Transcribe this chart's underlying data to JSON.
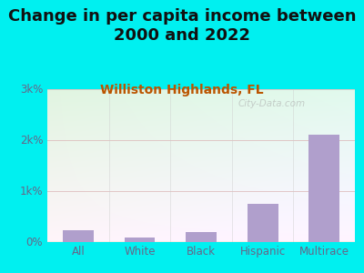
{
  "title": "Change in per capita income between\n2000 and 2022",
  "subtitle": "Williston Highlands, FL",
  "categories": [
    "All",
    "White",
    "Black",
    "Hispanic",
    "Multirace"
  ],
  "values": [
    220,
    80,
    190,
    750,
    2100
  ],
  "bar_color": "#b09fcc",
  "title_fontsize": 13,
  "subtitle_fontsize": 10,
  "subtitle_color": "#bb5500",
  "title_color": "#111111",
  "background_outer": "#00f0f0",
  "tick_color": "#666688",
  "ylim": [
    0,
    3000
  ],
  "yticks": [
    0,
    1000,
    2000,
    3000
  ],
  "ytick_labels": [
    "0%",
    "1k%",
    "2k%",
    "3k%"
  ],
  "watermark": "City-Data.com",
  "grid_color": "#ddbbbb",
  "separator_color": "#cccccc"
}
